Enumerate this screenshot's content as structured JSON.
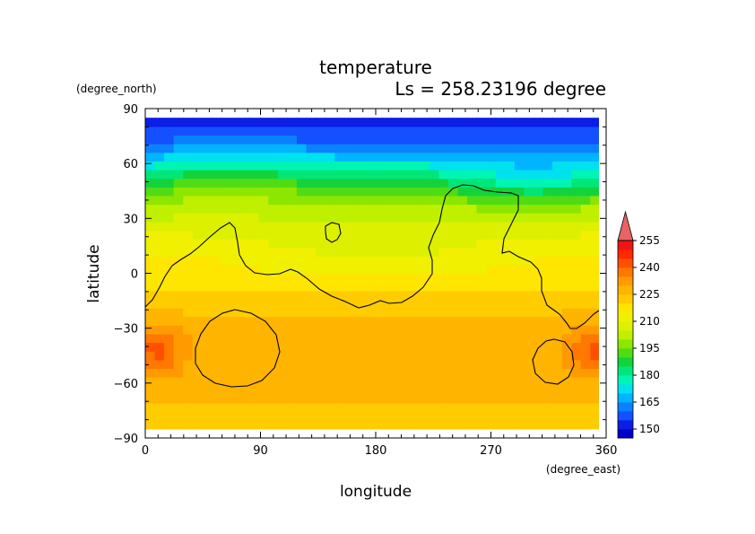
{
  "chart_data": {
    "type": "heatmap",
    "title": "temperature",
    "subtitle": "Ls = 258.23196 degree",
    "xlabel": "longitude",
    "ylabel": "latitude",
    "x_unit": "(degree_east)",
    "y_unit": "(degree_north)",
    "xlim": [
      0,
      360
    ],
    "ylim": [
      -90,
      90
    ],
    "x_ticks": [
      "0",
      "90",
      "180",
      "270",
      "360"
    ],
    "y_ticks": [
      "90",
      "60",
      "30",
      "0",
      "−30",
      "−60",
      "−90"
    ],
    "colorbar": {
      "levels": [
        145,
        150,
        155,
        160,
        165,
        170,
        175,
        180,
        185,
        190,
        195,
        200,
        205,
        210,
        215,
        220,
        225,
        230,
        235,
        240,
        245,
        250,
        255,
        260
      ],
      "tick_labels": [
        "150",
        "165",
        "180",
        "195",
        "210",
        "225",
        "240",
        "255"
      ],
      "colors": [
        "#0000c8",
        "#0a1ee6",
        "#1450ff",
        "#0a82ff",
        "#00b4ff",
        "#00e1f0",
        "#00f5b4",
        "#00e678",
        "#14d23c",
        "#50dc14",
        "#8ce600",
        "#bef000",
        "#dcf000",
        "#f0f000",
        "#ffe600",
        "#ffcc00",
        "#ffb400",
        "#ff9b00",
        "#ff7800",
        "#ff5000",
        "#ff2800",
        "#f01414",
        "#e66464"
      ]
    },
    "lat_profile": {
      "lat": [
        -85,
        -75,
        -65,
        -55,
        -45,
        -35,
        -25,
        -15,
        -5,
        5,
        15,
        25,
        35,
        45,
        55,
        65,
        75,
        85
      ],
      "temperature": [
        222,
        224,
        226,
        227,
        227,
        228,
        226,
        222,
        218,
        214,
        211,
        207,
        202,
        192,
        180,
        168,
        158,
        150
      ]
    },
    "contour_level": "topography outline"
  }
}
